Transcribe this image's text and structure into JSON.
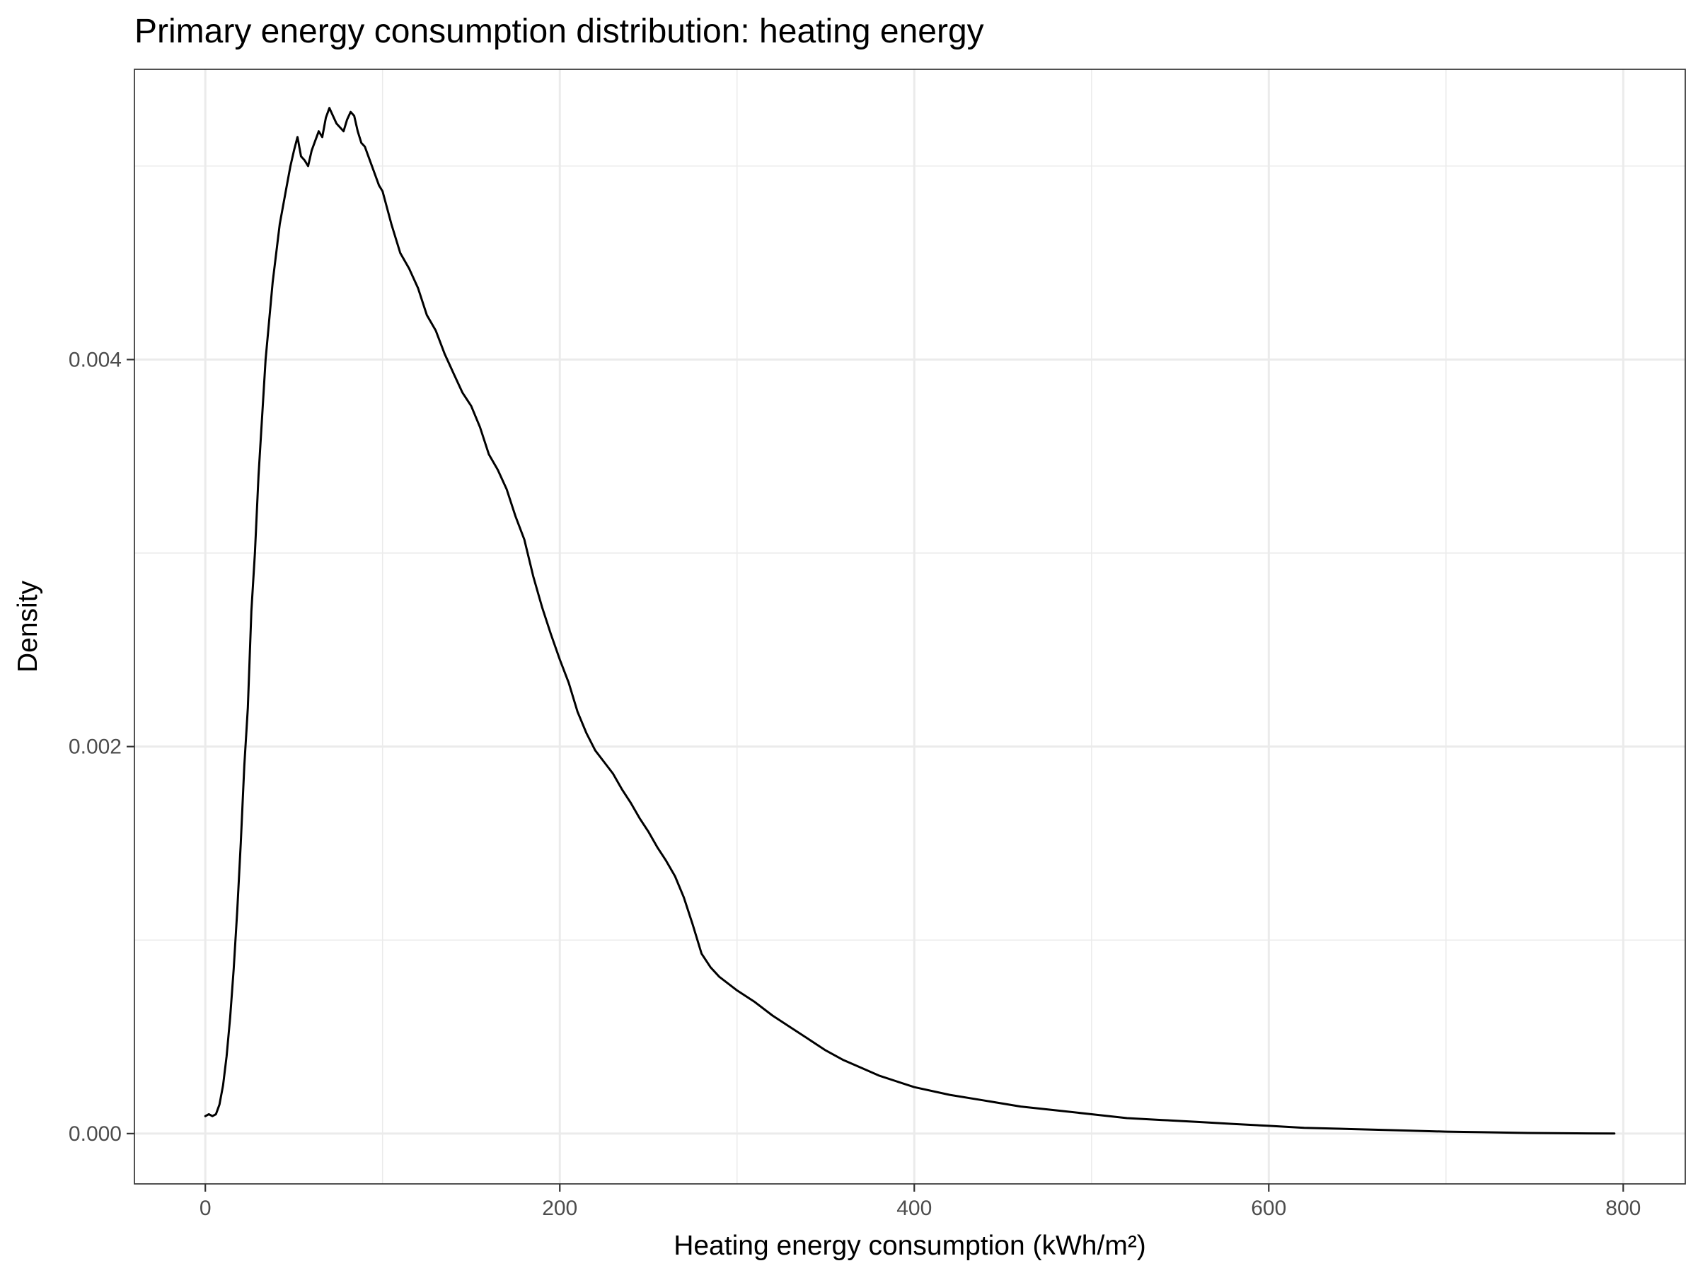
{
  "chart_data": {
    "type": "line",
    "title": "Primary energy consumption distribution: heating energy",
    "xlabel": "Heating energy consumption (kWh/m²)",
    "ylabel": "Density",
    "xlim": [
      -40,
      835
    ],
    "ylim": [
      -0.00026,
      0.0055
    ],
    "x_ticks": [
      0,
      200,
      400,
      600,
      800
    ],
    "x_tick_labels": [
      "0",
      "200",
      "400",
      "600",
      "800"
    ],
    "x_minor_ticks": [
      100,
      300,
      500,
      700
    ],
    "y_ticks": [
      0,
      0.002,
      0.004
    ],
    "y_tick_labels": [
      "0.000",
      "0.002",
      "0.004"
    ],
    "y_minor_ticks": [
      0.001,
      0.003,
      0.005
    ],
    "grid": true,
    "legend": "none",
    "line_color": "#000000",
    "series": [
      {
        "x": [
          0,
          2,
          4,
          6,
          8,
          10,
          12,
          14,
          16,
          18,
          20,
          22,
          24,
          26,
          28,
          30,
          32,
          34,
          36,
          38,
          40,
          42,
          44,
          46,
          48,
          50,
          52,
          54,
          56,
          58,
          60,
          62,
          64,
          66,
          68,
          70,
          72,
          74,
          76,
          78,
          80,
          82,
          84,
          86,
          88,
          90,
          92,
          94,
          96,
          98,
          100,
          105,
          110,
          115,
          120,
          125,
          130,
          135,
          140,
          145,
          150,
          155,
          160,
          165,
          170,
          175,
          180,
          185,
          190,
          195,
          200,
          205,
          210,
          215,
          220,
          225,
          230,
          235,
          240,
          245,
          250,
          255,
          260,
          265,
          270,
          275,
          280,
          285,
          290,
          300,
          310,
          320,
          330,
          340,
          350,
          360,
          370,
          380,
          390,
          400,
          420,
          440,
          460,
          480,
          500,
          520,
          540,
          560,
          580,
          600,
          620,
          640,
          660,
          680,
          700,
          720,
          740,
          760,
          780,
          795
        ],
        "y": [
          9e-05,
          0.0001,
          9e-05,
          0.0001,
          0.00015,
          0.00025,
          0.0004,
          0.0006,
          0.00085,
          0.00115,
          0.0015,
          0.0019,
          0.0022,
          0.0027,
          0.003,
          0.0034,
          0.0037,
          0.004,
          0.0042,
          0.0044,
          0.00455,
          0.0047,
          0.0048,
          0.0049,
          0.005,
          0.00508,
          0.00515,
          0.00505,
          0.00503,
          0.005,
          0.00508,
          0.00513,
          0.00518,
          0.00515,
          0.00525,
          0.0053,
          0.00526,
          0.00522,
          0.0052,
          0.00518,
          0.00524,
          0.00528,
          0.00526,
          0.00518,
          0.00512,
          0.0051,
          0.00505,
          0.005,
          0.00495,
          0.0049,
          0.00487,
          0.0047,
          0.00455,
          0.00447,
          0.00437,
          0.00423,
          0.00415,
          0.00403,
          0.00393,
          0.00383,
          0.00376,
          0.00365,
          0.00351,
          0.00343,
          0.00333,
          0.00319,
          0.00307,
          0.00288,
          0.00272,
          0.00258,
          0.00245,
          0.00233,
          0.00218,
          0.00207,
          0.00198,
          0.00192,
          0.00186,
          0.00178,
          0.00171,
          0.00163,
          0.00156,
          0.00148,
          0.00141,
          0.00133,
          0.00122,
          0.00108,
          0.00093,
          0.00086,
          0.00081,
          0.00074,
          0.00068,
          0.00061,
          0.00055,
          0.00049,
          0.00043,
          0.00038,
          0.00034,
          0.0003,
          0.00027,
          0.00024,
          0.0002,
          0.00017,
          0.00014,
          0.00012,
          0.0001,
          8e-05,
          7e-05,
          6e-05,
          5e-05,
          4e-05,
          3e-05,
          2.5e-05,
          2e-05,
          1.5e-05,
          1e-05,
          7e-06,
          4e-06,
          2e-06,
          1e-06,
          5e-07
        ]
      }
    ]
  }
}
